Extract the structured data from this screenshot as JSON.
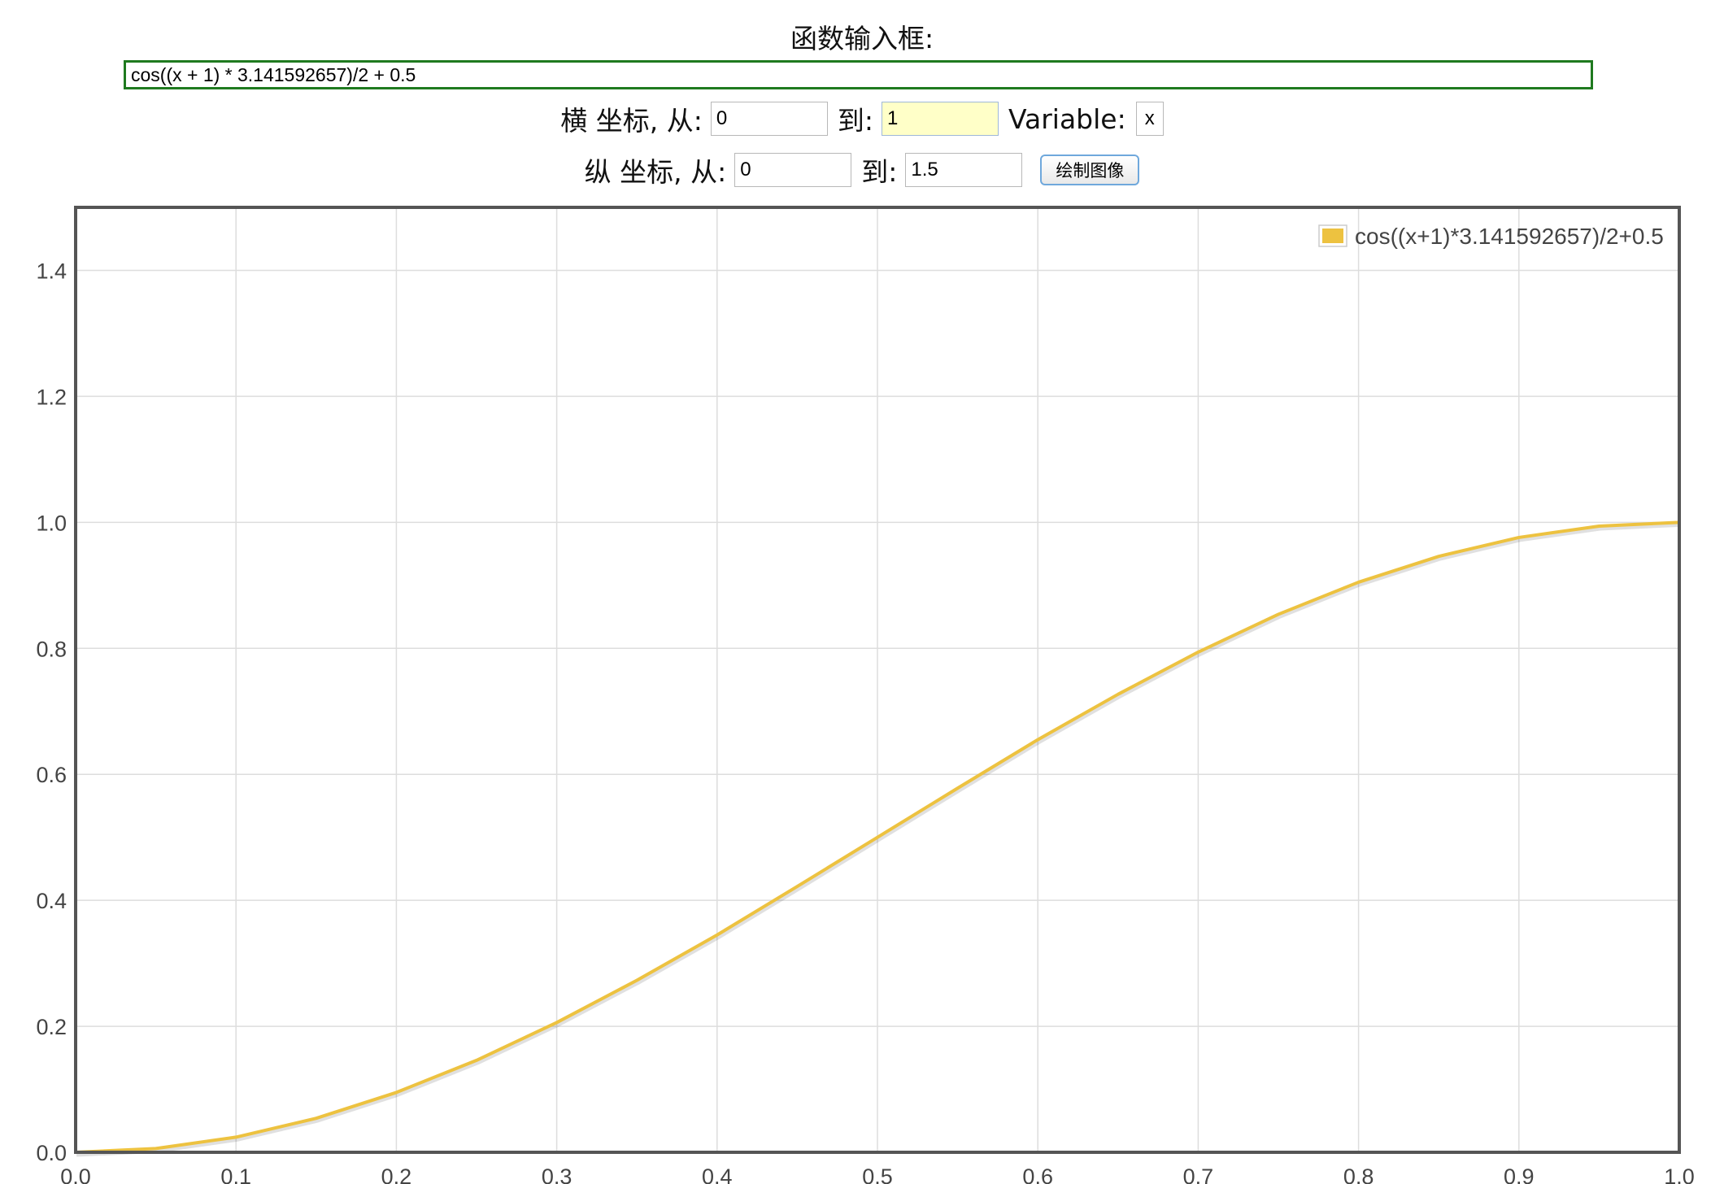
{
  "form": {
    "function_label": "函数输入框:",
    "function_value": "cos((x + 1) * 3.141592657)/2 + 0.5",
    "x_axis_label": "横 坐标, 从:",
    "x_from": "0",
    "to_label": "到:",
    "x_to": "1",
    "variable_label": "Variable:",
    "variable_value": "x",
    "y_axis_label": "纵 坐标, 从:",
    "y_from": "0",
    "y_to": "1.5",
    "plot_button_label": "绘制图像"
  },
  "colors": {
    "series": "#edc240",
    "input_border_active": "#1f7a1f",
    "grid": "#dddddd",
    "frame": "#555555"
  },
  "chart_data": {
    "type": "line",
    "title": "",
    "xlabel": "",
    "ylabel": "",
    "xlim": [
      0,
      1
    ],
    "ylim": [
      0,
      1.5
    ],
    "x_ticks": [
      "0.0",
      "0.1",
      "0.2",
      "0.3",
      "0.4",
      "0.5",
      "0.6",
      "0.7",
      "0.8",
      "0.9",
      "1.0"
    ],
    "y_ticks": [
      "0.0",
      "0.2",
      "0.4",
      "0.6",
      "0.8",
      "1.0",
      "1.2",
      "1.4"
    ],
    "grid": true,
    "legend_position": "top-right",
    "series": [
      {
        "name": "cos((x+1)*3.141592657)/2+0.5",
        "x": [
          0,
          0.05,
          0.1,
          0.15,
          0.2,
          0.25,
          0.3,
          0.35,
          0.4,
          0.45,
          0.5,
          0.55,
          0.6,
          0.65,
          0.7,
          0.75,
          0.8,
          0.85,
          0.9,
          0.95,
          1.0
        ],
        "y": [
          0,
          0.006,
          0.024,
          0.054,
          0.095,
          0.146,
          0.206,
          0.273,
          0.345,
          0.422,
          0.5,
          0.578,
          0.655,
          0.727,
          0.794,
          0.854,
          0.905,
          0.946,
          0.976,
          0.994,
          1.0
        ]
      }
    ]
  }
}
